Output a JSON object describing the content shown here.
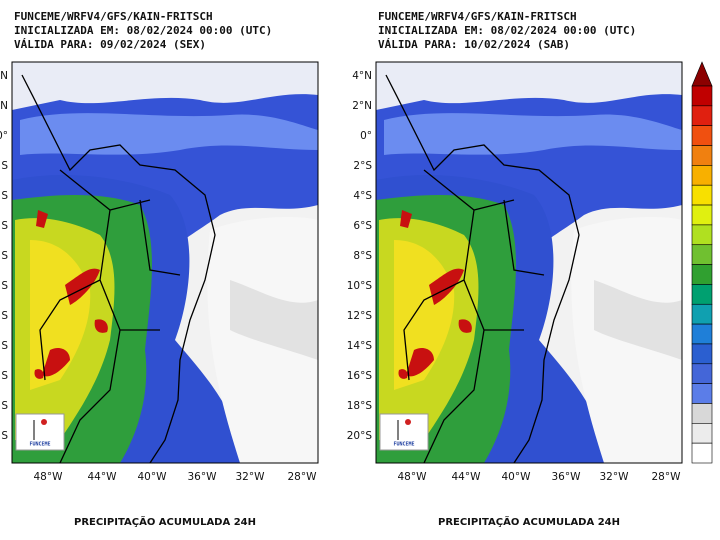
{
  "panels": [
    {
      "header": [
        "FUNCEME/WRFV4/GFS/KAIN-FRITSCH",
        "INICIALIZADA EM: 08/02/2024 00:00 (UTC)",
        "VÁLIDA PARA: 09/02/2024 (SEX)"
      ],
      "lat_labels": [
        "N",
        "N",
        "0°",
        "S",
        "S",
        "S",
        "S",
        "S",
        "S",
        "S",
        "S",
        "S",
        "S"
      ],
      "lon_labels": [
        "48°W",
        "44°W",
        "40°W",
        "36°W",
        "32°W",
        "28°W"
      ],
      "caption": "PRECIPITAÇÃO ACUMULADA 24H",
      "logo": "FUNCEME"
    },
    {
      "header": [
        "FUNCEME/WRFV4/GFS/KAIN-FRITSCH",
        "INICIALIZADA EM: 08/02/2024 00:00 (UTC)",
        "VÁLIDA PARA: 10/02/2024 (SAB)"
      ],
      "lat_labels": [
        "4°N",
        "2°N",
        "0°",
        "2°S",
        "4°S",
        "6°S",
        "8°S",
        "10°S",
        "12°S",
        "14°S",
        "16°S",
        "18°S",
        "20°S"
      ],
      "lon_labels": [
        "48°W",
        "44°W",
        "40°W",
        "36°W",
        "32°W",
        "28°W"
      ],
      "caption": "PRECIPITAÇÃO ACUMULADA 24H",
      "logo": "FUNCEME"
    }
  ]
}
